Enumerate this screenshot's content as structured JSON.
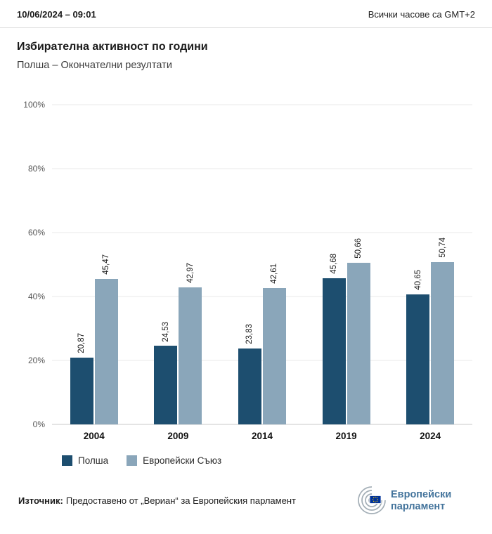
{
  "header": {
    "datetime": "10/06/2024 – 09:01",
    "timezone_note": "Всички часове са GMT+2"
  },
  "title": "Избирателна активност по години",
  "subtitle": "Полша – Окончателни резултати",
  "chart_data": {
    "type": "bar",
    "categories": [
      "2004",
      "2009",
      "2014",
      "2019",
      "2024"
    ],
    "series": [
      {
        "name": "Полша",
        "color": "#1d4e6f",
        "values": [
          20.87,
          24.53,
          23.83,
          45.68,
          40.65
        ],
        "labels": [
          "20,87",
          "24,53",
          "23,83",
          "45,68",
          "40,65"
        ]
      },
      {
        "name": "Европейски Съюз",
        "color": "#8aa6ba",
        "values": [
          45.47,
          42.97,
          42.61,
          50.66,
          50.74
        ],
        "labels": [
          "45,47",
          "42,97",
          "42,61",
          "50,66",
          "50,74"
        ]
      }
    ],
    "ylim": [
      0,
      100
    ],
    "yticks": [
      "0%",
      "20%",
      "40%",
      "60%",
      "80%",
      "100%"
    ],
    "grid": true,
    "legend_position": "bottom",
    "value_label_rotation": 90
  },
  "footer": {
    "source_label": "Източник:",
    "source_text": "Предоставено от „Вериан“ за Европейския парламент",
    "logo_text_line1": "Европейски",
    "logo_text_line2": "парламент"
  },
  "colors": {
    "poland_bar": "#1d4e6f",
    "eu_bar": "#8aa6ba",
    "logo_blue": "#44749c",
    "eu_flag_blue": "#003399",
    "eu_star_yellow": "#ffcc00"
  }
}
